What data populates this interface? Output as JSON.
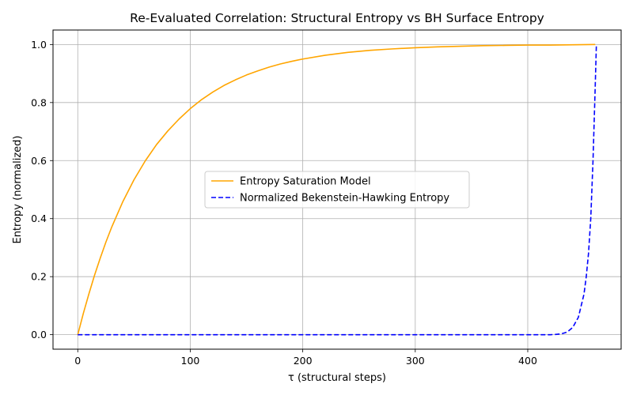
{
  "chart_data": {
    "type": "line",
    "title": "Re-Evaluated Correlation: Structural Entropy vs BH Surface Entropy",
    "xlabel": "τ (structural steps)",
    "ylabel": "Entropy (normalized)",
    "xlim": [
      -22,
      483
    ],
    "ylim": [
      -0.05,
      1.05
    ],
    "xticks": [
      0,
      100,
      200,
      300,
      400
    ],
    "yticks": [
      0.0,
      0.2,
      0.4,
      0.6,
      0.8,
      1.0
    ],
    "xtick_labels": [
      "0",
      "100",
      "200",
      "300",
      "400"
    ],
    "ytick_labels": [
      "0.0",
      "0.2",
      "0.4",
      "0.6",
      "0.8",
      "1.0"
    ],
    "grid": true,
    "legend_position": "center-right",
    "series": [
      {
        "name": "Entropy Saturation Model",
        "color": "#ffa500",
        "dash": "solid",
        "x": [
          0,
          5,
          10,
          15,
          20,
          25,
          30,
          40,
          50,
          60,
          70,
          80,
          90,
          100,
          110,
          120,
          130,
          140,
          150,
          160,
          170,
          180,
          190,
          200,
          220,
          240,
          260,
          280,
          300,
          320,
          340,
          360,
          380,
          400,
          420,
          440,
          460
        ],
        "y": [
          0.0,
          0.074,
          0.142,
          0.206,
          0.264,
          0.319,
          0.369,
          0.458,
          0.534,
          0.599,
          0.655,
          0.702,
          0.743,
          0.779,
          0.81,
          0.836,
          0.859,
          0.878,
          0.895,
          0.909,
          0.922,
          0.933,
          0.942,
          0.95,
          0.963,
          0.973,
          0.98,
          0.985,
          0.989,
          0.992,
          0.994,
          0.996,
          0.997,
          0.998,
          0.998,
          0.999,
          1.0
        ]
      },
      {
        "name": "Normalized Bekenstein-Hawking Entropy",
        "color": "#0000ff",
        "dash": "dashed",
        "x": [
          0,
          100,
          200,
          300,
          400,
          420,
          425,
          430,
          435,
          440,
          445,
          450,
          452,
          454,
          456,
          458,
          460,
          461
        ],
        "y": [
          0.0,
          0.0,
          0.0,
          0.0,
          0.0,
          0.0,
          0.001,
          0.003,
          0.009,
          0.025,
          0.06,
          0.14,
          0.2,
          0.28,
          0.4,
          0.6,
          0.86,
          1.0
        ]
      }
    ]
  }
}
